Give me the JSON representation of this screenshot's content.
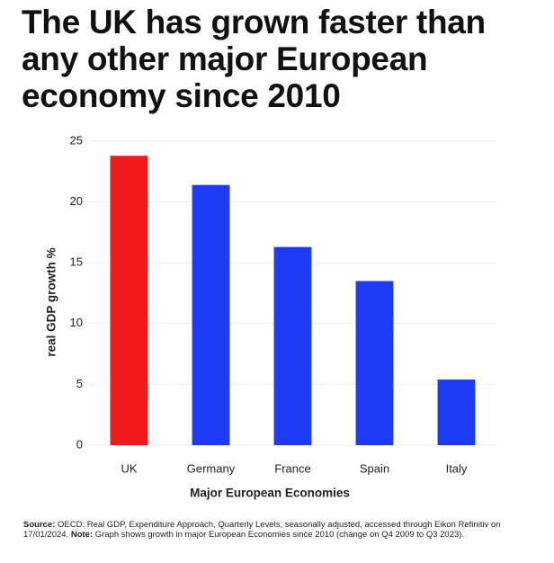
{
  "chart_data": {
    "type": "bar",
    "title": "The UK has grown faster than any other major European economy since 2010",
    "x_label": "Major European Economies",
    "y_label": "real GDP growth %",
    "categories": [
      "UK",
      "Germany",
      "France",
      "Spain",
      "Italy"
    ],
    "values": [
      23.8,
      21.4,
      16.3,
      13.5,
      5.4
    ],
    "colors": [
      "#f01a1a",
      "#1c3bf2",
      "#1c3bf2",
      "#1c3bf2",
      "#1c3bf2"
    ],
    "ylim": [
      0,
      25
    ],
    "yticks": [
      0,
      5,
      10,
      15,
      20,
      25
    ],
    "grid": true,
    "source_label": "Source:",
    "source": "OECD: Real GDP, Expenditure Approach, Quarterly Levels, seasonally adjusted, accessed through Eikon Refinitiv on 17/01/2024.",
    "note_label": "Note:",
    "note": "Graph shows growth in major European Economies since 2010 (change on Q4 2009 to Q3 2023)."
  }
}
